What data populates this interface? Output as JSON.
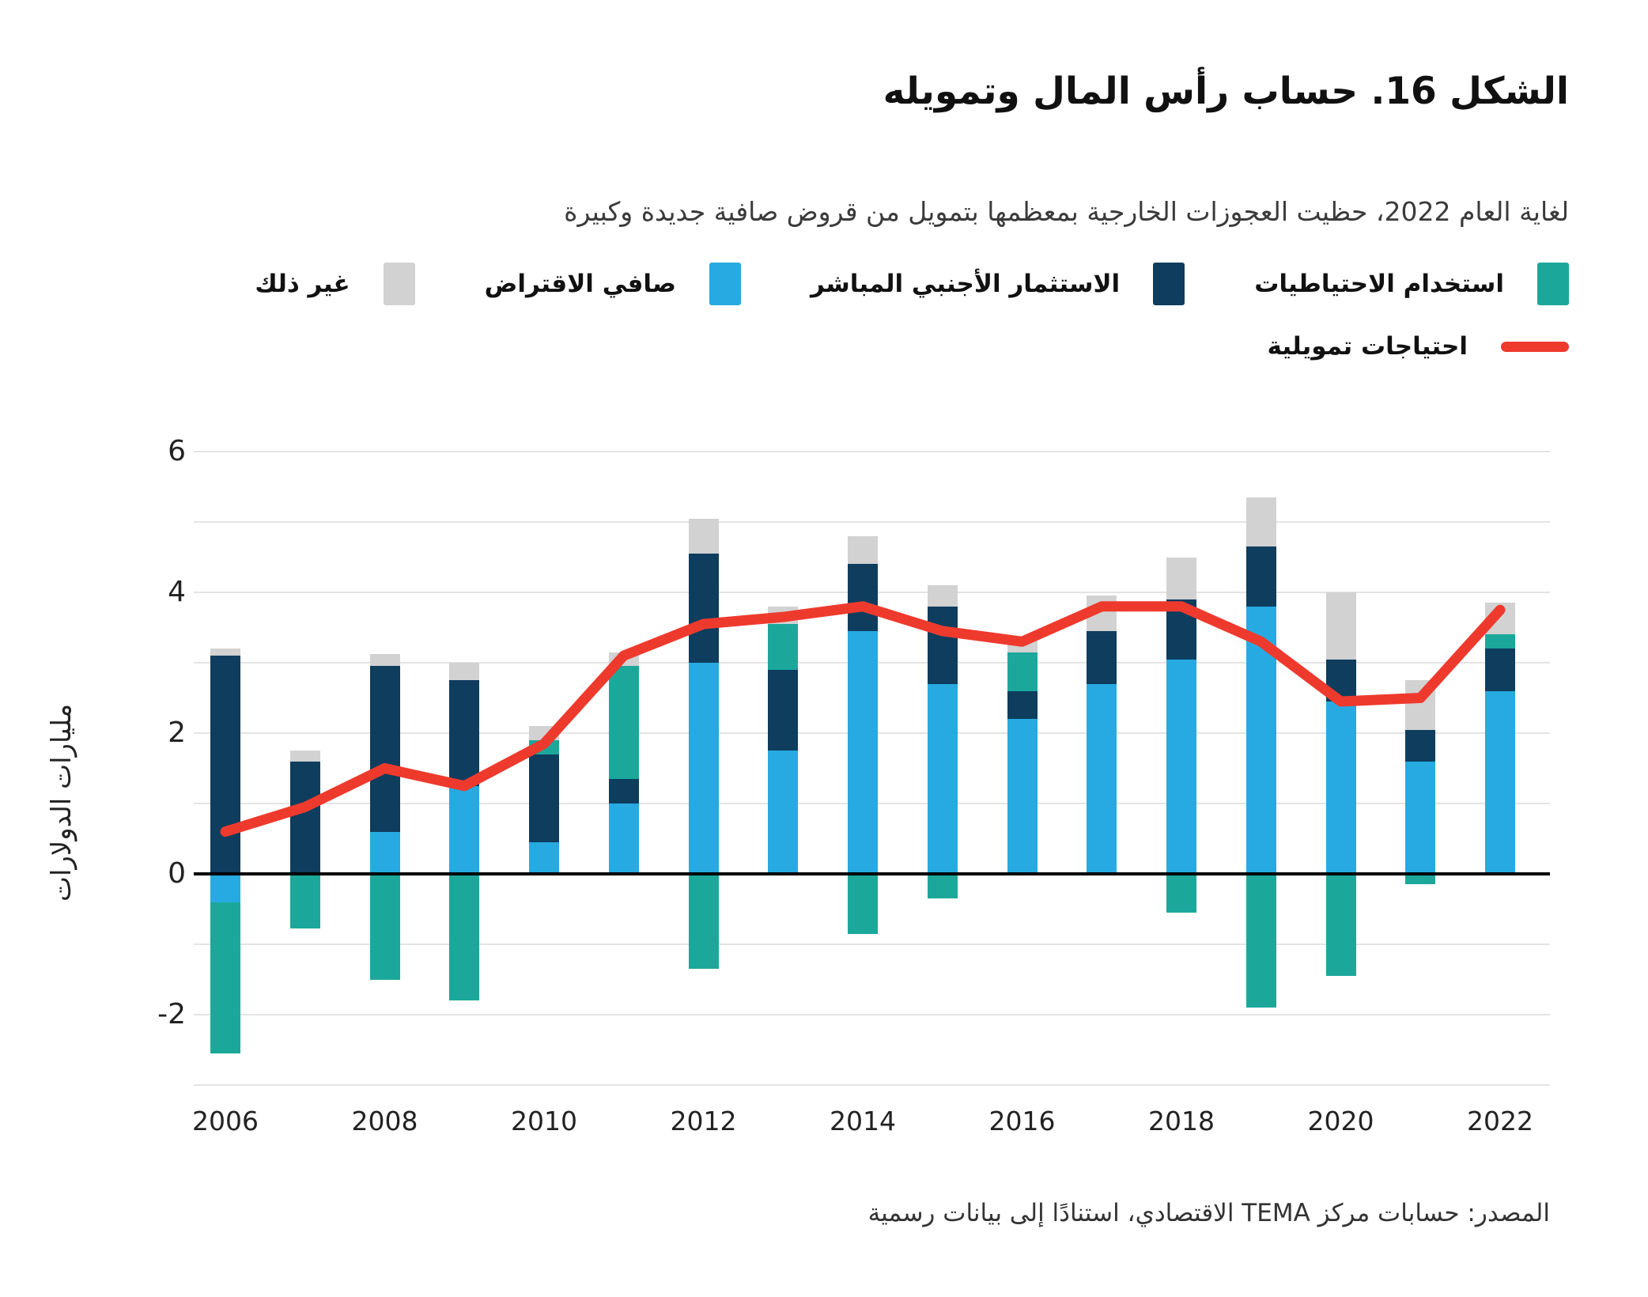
{
  "header": {
    "title": "الشكل 16. حساب رأس المال وتمويله",
    "subtitle": "لغاية العام 2022، حظيت العجوزات الخارجية بمعظمها بتمويل من قروض صافية جديدة وكبيرة"
  },
  "legend": {
    "bar_items": [
      {
        "key": "reserves",
        "label": "استخدام الاحتياطيات",
        "color": "#1ba89b"
      },
      {
        "key": "fdi",
        "label": "الاستثمار الأجنبي المباشر",
        "color": "#0e3d5e"
      },
      {
        "key": "net_borrowing",
        "label": "صافي الاقتراض",
        "color": "#27aae1"
      },
      {
        "key": "other",
        "label": "غير ذلك",
        "color": "#d2d2d2"
      }
    ],
    "line_item": {
      "label": "احتياجات تمويلية",
      "color": "#ee3a2d"
    }
  },
  "chart_data": {
    "type": "stacked-bar+line",
    "title": "الشكل 16. حساب رأس المال وتمويله",
    "xlabel": "",
    "ylabel": "مليارات الدولارات",
    "ylim": [
      -3,
      6
    ],
    "grid": true,
    "x": [
      2006,
      2007,
      2008,
      2009,
      2010,
      2011,
      2012,
      2013,
      2014,
      2015,
      2016,
      2017,
      2018,
      2019,
      2020,
      2021,
      2022
    ],
    "x_labeled_ticks": [
      2006,
      2008,
      2010,
      2012,
      2014,
      2016,
      2018,
      2020,
      2022
    ],
    "y_gridlines": [
      6,
      5,
      4,
      3,
      2,
      1,
      0,
      -1,
      -2,
      -3
    ],
    "y_labeled_ticks": [
      6,
      4,
      2,
      0,
      -2
    ],
    "stack_order": [
      "net_borrowing",
      "fdi",
      "reserves",
      "other"
    ],
    "bar_series": [
      {
        "key": "net_borrowing",
        "name": "صافي الاقتراض",
        "color": "#27aae1",
        "values": [
          -0.4,
          0,
          0.6,
          1.25,
          0.45,
          1.0,
          3.0,
          1.75,
          3.45,
          2.7,
          2.2,
          2.7,
          3.05,
          3.8,
          2.45,
          1.6,
          2.6
        ]
      },
      {
        "key": "fdi",
        "name": "الاستثمار الأجنبي المباشر",
        "color": "#0e3d5e",
        "values": [
          3.1,
          1.6,
          2.35,
          1.5,
          1.25,
          0.35,
          1.55,
          1.15,
          0.95,
          1.1,
          0.4,
          0.75,
          0.85,
          0.85,
          0.6,
          0.45,
          0.6
        ]
      },
      {
        "key": "reserves",
        "name": "استخدام الاحتياطيات",
        "color": "#1ba89b",
        "values": [
          -2.15,
          -0.77,
          -1.5,
          -1.8,
          0.2,
          1.6,
          -1.35,
          0.65,
          -0.85,
          -0.35,
          0.55,
          0,
          -0.55,
          -1.9,
          -1.45,
          -0.15,
          0.2
        ]
      },
      {
        "key": "other",
        "name": "غير ذلك",
        "color": "#d2d2d2",
        "values": [
          0.1,
          0.15,
          0.17,
          0.25,
          0.2,
          0.2,
          0.5,
          0.25,
          0.4,
          0.3,
          0.2,
          0.5,
          0.6,
          0.7,
          0.95,
          0.7,
          0.45
        ]
      }
    ],
    "line_series": {
      "key": "financing_needs",
      "name": "احتياجات تمويلية",
      "color": "#ee3a2d",
      "values": [
        0.6,
        0.95,
        1.5,
        1.25,
        1.85,
        3.1,
        3.55,
        3.65,
        3.8,
        3.45,
        3.3,
        3.8,
        3.8,
        3.3,
        2.45,
        2.5,
        3.75
      ]
    },
    "legend_position": "top-right"
  },
  "source": "المصدر: حسابات مركز TEMA الاقتصادي، استنادًا إلى بيانات رسمية"
}
